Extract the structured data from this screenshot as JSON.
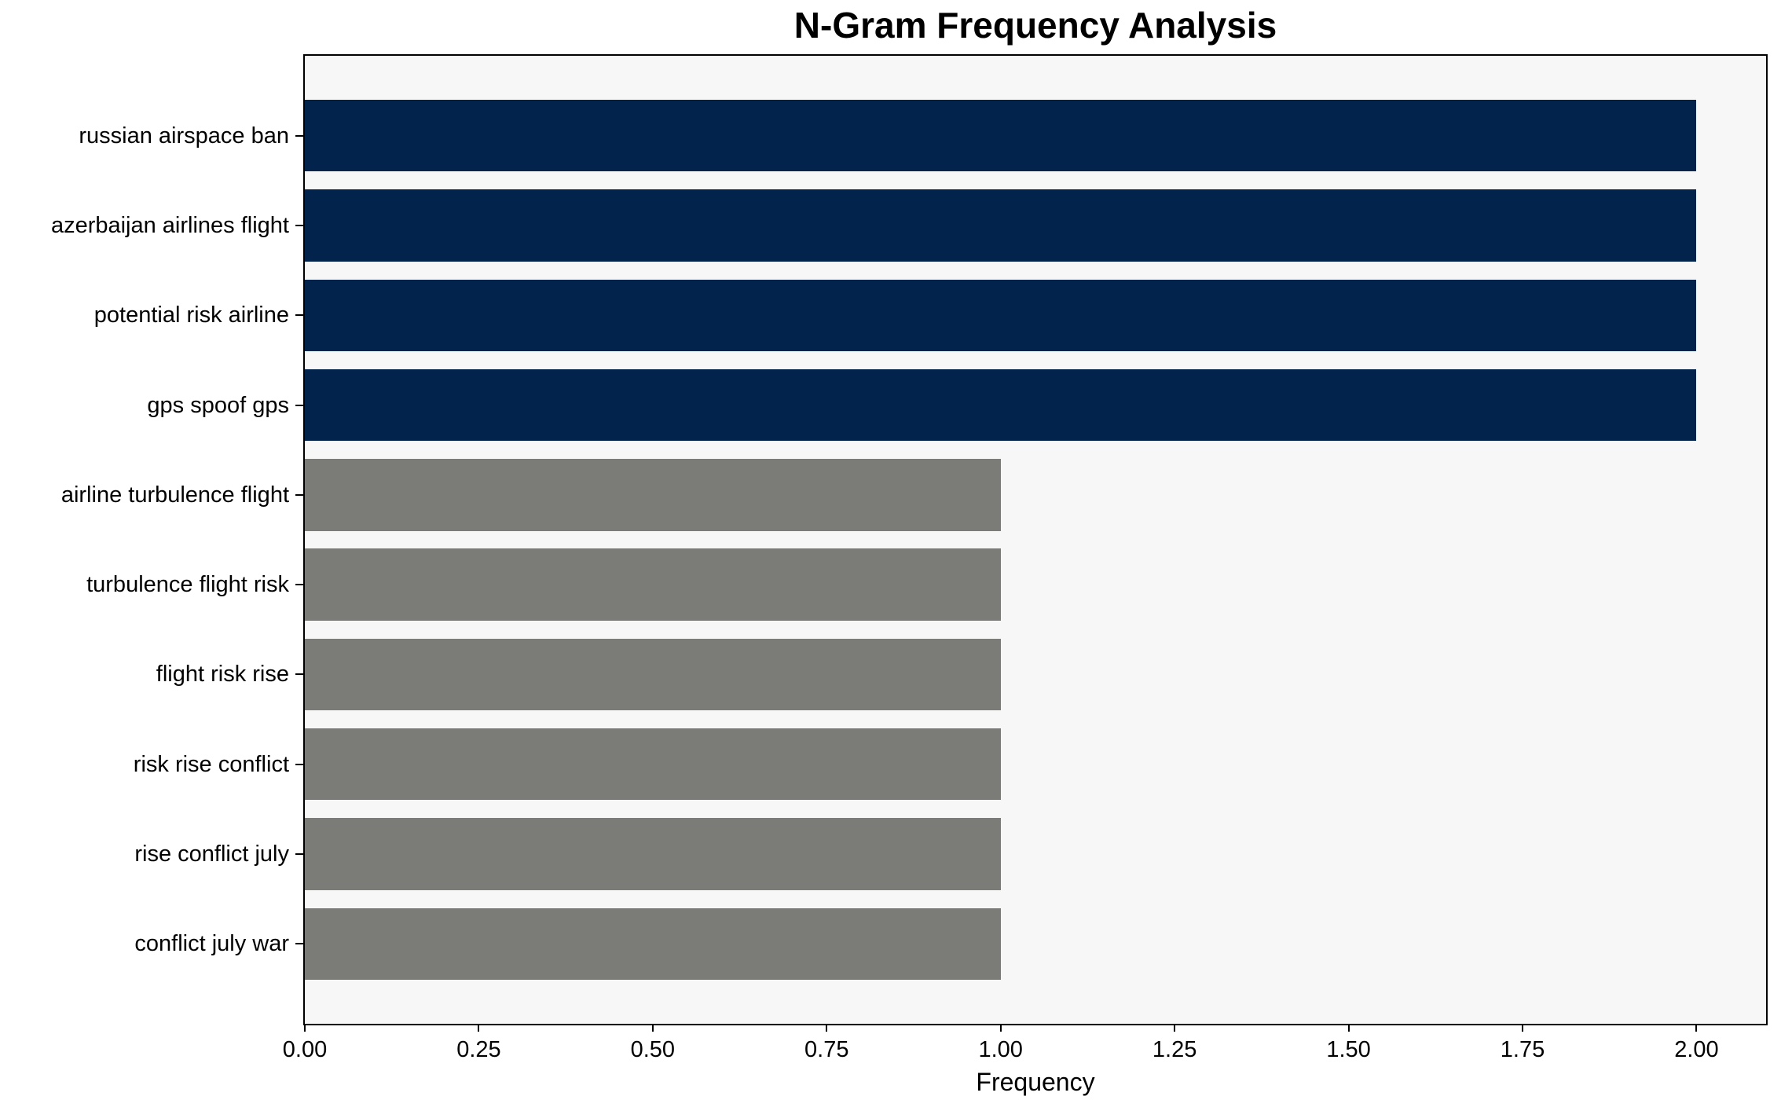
{
  "chart_data": {
    "type": "bar",
    "orientation": "horizontal",
    "title": "N-Gram Frequency Analysis",
    "xlabel": "Frequency",
    "ylabel": "",
    "categories": [
      "russian airspace ban",
      "azerbaijan airlines flight",
      "potential risk airline",
      "gps spoof gps",
      "airline turbulence flight",
      "turbulence flight risk",
      "flight risk rise",
      "risk rise conflict",
      "rise conflict july",
      "conflict july war"
    ],
    "values": [
      2,
      2,
      2,
      2,
      1,
      1,
      1,
      1,
      1,
      1
    ],
    "bar_colors": [
      "#02234c",
      "#02234c",
      "#02234c",
      "#02234c",
      "#7b7b77",
      "#7b7b77",
      "#7b7b77",
      "#7b7b77",
      "#7b7b77",
      "#7b7b77"
    ],
    "xticks": [
      0,
      0.25,
      0.5,
      0.75,
      1,
      1.25,
      1.5,
      1.75,
      2
    ],
    "xtick_labels": [
      "0.00",
      "0.25",
      "0.50",
      "0.75",
      "1.00",
      "1.25",
      "1.50",
      "1.75",
      "2.00"
    ],
    "xlim": [
      0,
      2.1
    ],
    "bar_height_frac": 0.8,
    "grid": false,
    "legend": null,
    "colors": {
      "navy": "#02234c",
      "gray": "#7b7b77",
      "plot_background": "#f7f7f7",
      "figure_background": "#ffffff",
      "spine": "#000000",
      "text": "#000000"
    }
  }
}
